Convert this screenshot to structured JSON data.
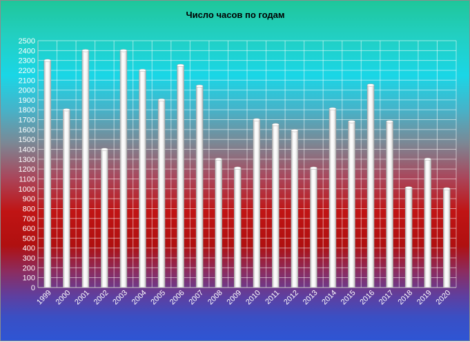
{
  "chart_data": {
    "type": "bar",
    "title": "Число часов по годам",
    "xlabel": "",
    "ylabel": "",
    "categories": [
      "1999",
      "2000",
      "2001",
      "2002",
      "2003",
      "2004",
      "2005",
      "2006",
      "2007",
      "2008",
      "2009",
      "2010",
      "2011",
      "2012",
      "2013",
      "2014",
      "2015",
      "2016",
      "2017",
      "2018",
      "2019",
      "2020"
    ],
    "values": [
      2300,
      1800,
      2400,
      1400,
      2400,
      2200,
      1900,
      2250,
      2040,
      1300,
      1210,
      1700,
      1650,
      1590,
      1210,
      1810,
      1680,
      2050,
      1680,
      1010,
      1300,
      1000
    ],
    "ylim": [
      0,
      2500
    ],
    "ytick_step": 100,
    "grid": true,
    "legend": "none",
    "colors": {
      "bar": "#ffffff",
      "bar_shade": "#c8c8c8",
      "grid": "#ffffff",
      "text": "#ffffff",
      "title": "#000000"
    }
  }
}
